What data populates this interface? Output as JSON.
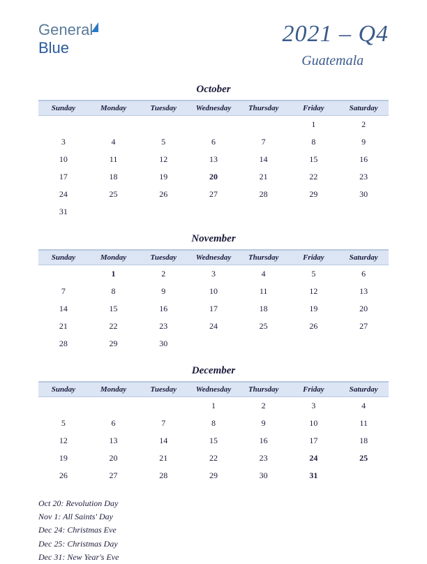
{
  "logo": {
    "part1": "General",
    "part2": "Blue"
  },
  "header": {
    "quarter": "2021 – Q4",
    "country": "Guatemala"
  },
  "style": {
    "header_row_bg": "#dbe5f4",
    "header_row_border": "#b8c8e0",
    "text_color": "#1a1a3a",
    "holiday_color": "#c02020",
    "title_color": "#3a5a8a",
    "page_bg": "#ffffff",
    "month_fontsize": 15,
    "dayhdr_fontsize": 11,
    "cell_fontsize": 12
  },
  "day_headers": [
    "Sunday",
    "Monday",
    "Tuesday",
    "Wednesday",
    "Thursday",
    "Friday",
    "Saturday"
  ],
  "months": [
    {
      "name": "October",
      "weeks": [
        [
          "",
          "",
          "",
          "",
          "",
          "1",
          "2"
        ],
        [
          "3",
          "4",
          "5",
          "6",
          "7",
          "8",
          "9"
        ],
        [
          "10",
          "11",
          "12",
          "13",
          "14",
          "15",
          "16"
        ],
        [
          "17",
          "18",
          "19",
          "20",
          "21",
          "22",
          "23"
        ],
        [
          "24",
          "25",
          "26",
          "27",
          "28",
          "29",
          "30"
        ],
        [
          "31",
          "",
          "",
          "",
          "",
          "",
          ""
        ]
      ],
      "holidays": [
        "20"
      ]
    },
    {
      "name": "November",
      "weeks": [
        [
          "",
          "1",
          "2",
          "3",
          "4",
          "5",
          "6"
        ],
        [
          "7",
          "8",
          "9",
          "10",
          "11",
          "12",
          "13"
        ],
        [
          "14",
          "15",
          "16",
          "17",
          "18",
          "19",
          "20"
        ],
        [
          "21",
          "22",
          "23",
          "24",
          "25",
          "26",
          "27"
        ],
        [
          "28",
          "29",
          "30",
          "",
          "",
          "",
          ""
        ]
      ],
      "holidays": [
        "1"
      ]
    },
    {
      "name": "December",
      "weeks": [
        [
          "",
          "",
          "",
          "1",
          "2",
          "3",
          "4"
        ],
        [
          "5",
          "6",
          "7",
          "8",
          "9",
          "10",
          "11"
        ],
        [
          "12",
          "13",
          "14",
          "15",
          "16",
          "17",
          "18"
        ],
        [
          "19",
          "20",
          "21",
          "22",
          "23",
          "24",
          "25"
        ],
        [
          "26",
          "27",
          "28",
          "29",
          "30",
          "31",
          ""
        ]
      ],
      "holidays": [
        "24",
        "25",
        "31"
      ]
    }
  ],
  "holiday_notes": [
    "Oct 20: Revolution Day",
    "Nov 1: All Saints' Day",
    "Dec 24: Christmas Eve",
    "Dec 25: Christmas Day",
    "Dec 31: New Year's Eve"
  ]
}
